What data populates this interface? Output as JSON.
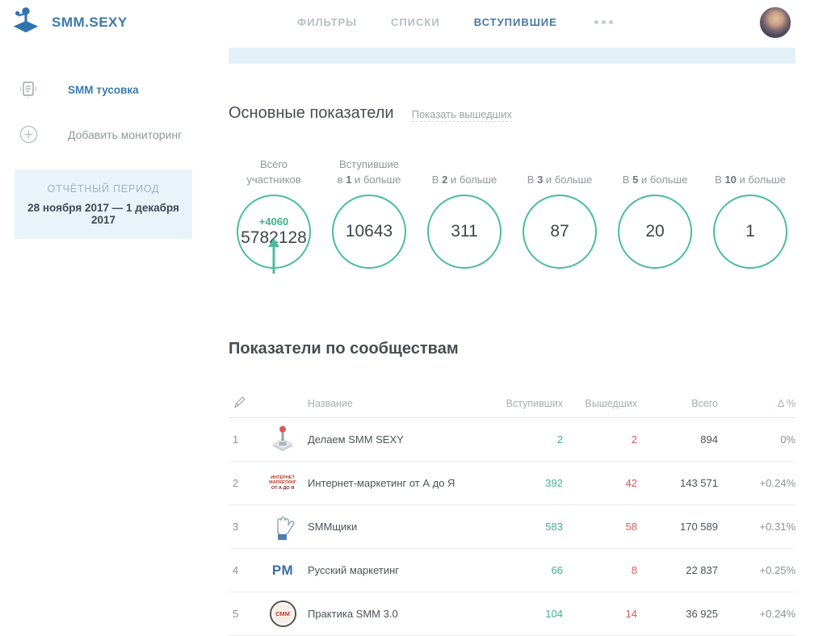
{
  "header": {
    "logo_text": "SMM.SEXY",
    "tabs": [
      {
        "label": "ФИЛЬТРЫ",
        "active": false
      },
      {
        "label": "СПИСКИ",
        "active": false
      },
      {
        "label": "ВСТУПИВШИЕ",
        "active": true
      }
    ]
  },
  "sidebar": {
    "items": [
      {
        "label": "SMM тусовка",
        "icon": "report-icon",
        "active": true
      },
      {
        "label": "Добавить мониторинг",
        "icon": "plus-circle-icon",
        "active": false
      }
    ],
    "period": {
      "title": "ОТЧЁТНЫЙ ПЕРИОД",
      "range": "28 ноября 2017 — 1 декабря 2017"
    }
  },
  "main": {
    "section1_title": "Основные показатели",
    "show_left_link": "Показать вышедших",
    "stats": [
      {
        "line1": "Всего",
        "line2_pre": "участников",
        "line2_bold": "",
        "line2_post": "",
        "value": "5782128",
        "plus": "+4060",
        "arrow": true
      },
      {
        "line1": "Вступившие",
        "line2_pre": "в ",
        "line2_bold": "1",
        "line2_post": " и больше",
        "value": "10643"
      },
      {
        "line1": "",
        "line2_pre": "В ",
        "line2_bold": "2",
        "line2_post": " и больше",
        "value": "311"
      },
      {
        "line1": "",
        "line2_pre": "В ",
        "line2_bold": "3",
        "line2_post": " и больше",
        "value": "87"
      },
      {
        "line1": "",
        "line2_pre": "В ",
        "line2_bold": "5",
        "line2_post": " и больше",
        "value": "20"
      },
      {
        "line1": "",
        "line2_pre": "В ",
        "line2_bold": "10",
        "line2_post": " и больше",
        "value": "1"
      }
    ],
    "section2_title": "Показатели по сообществам",
    "table": {
      "headers": {
        "name": "Название",
        "joined": "Вступивших",
        "left": "Вышедших",
        "total": "Всего",
        "delta": "Δ %"
      },
      "rows": [
        {
          "num": "1",
          "icon": "joystick-community-icon",
          "name": "Делаем SMM SEXY",
          "joined": "2",
          "left": "2",
          "total": "894",
          "delta": "0%"
        },
        {
          "num": "2",
          "icon": "internet-marketing-logo",
          "name": "Интернет-маркетинг от А до Я",
          "joined": "392",
          "left": "42",
          "total": "143 571",
          "delta": "+0.24%"
        },
        {
          "num": "3",
          "icon": "glove-community-icon",
          "name": "SMMщики",
          "joined": "583",
          "left": "58",
          "total": "170 589",
          "delta": "+0.31%"
        },
        {
          "num": "4",
          "icon": "pm-logo",
          "name": "Русский маркетинг",
          "joined": "66",
          "left": "8",
          "total": "22 837",
          "delta": "+0.25%"
        },
        {
          "num": "5",
          "icon": "smm-badge-logo",
          "name": "Практика SMM 3.0",
          "joined": "104",
          "left": "14",
          "total": "36 925",
          "delta": "+0.24%"
        }
      ],
      "icon_texts": {
        "internet_marketing_lines": [
          "ИНТЕРНЕТ",
          "МАРКЕТИНГ",
          "ОТ А ДО Я"
        ],
        "pm_text": "РМ",
        "badge_text": "СММ"
      }
    }
  },
  "colors": {
    "accent_blue": "#3a7ab0",
    "green": "#3cb388",
    "red": "#dc5a5a",
    "circle_border": "#4abd9a",
    "notification_bar": "#e4f1f9",
    "period_box": "#e9f3fa"
  }
}
